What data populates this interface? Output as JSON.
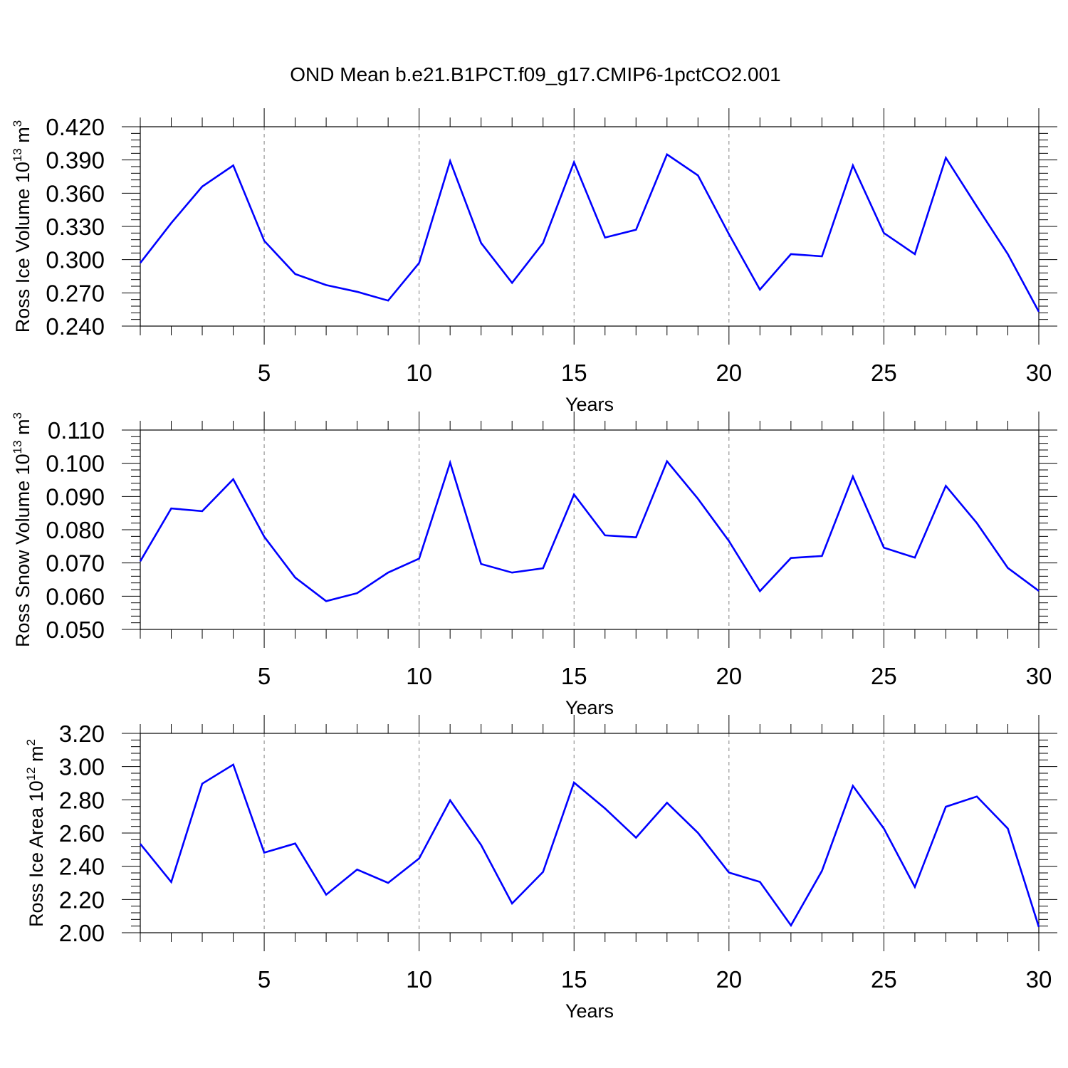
{
  "figure": {
    "title": "OND Mean b.e21.B1PCT.f09_g17.CMIP6-1pctCO2.001"
  },
  "style": {
    "line_color": "#0000ff",
    "axis_color": "#000000",
    "grid_color": "#808080"
  },
  "chart_data": [
    {
      "type": "line",
      "title": "OND Mean b.e21.B1PCT.f09_g17.CMIP6-1pctCO2.001",
      "xlabel": "Years",
      "ylabel": {
        "text": "Ross Ice Volume 10",
        "sup": "13",
        "unit": " m",
        "unit_sup": "3"
      },
      "xlim": [
        1,
        30
      ],
      "ylim": [
        0.24,
        0.42
      ],
      "xticks": [
        5,
        10,
        15,
        20,
        25,
        30
      ],
      "xtick_labels": [
        "5",
        "10",
        "15",
        "20",
        "25",
        "30"
      ],
      "yticks": [
        0.24,
        0.27,
        0.3,
        0.33,
        0.36,
        0.39,
        0.42
      ],
      "ytick_labels": [
        "0.240",
        "0.270",
        "0.300",
        "0.330",
        "0.360",
        "0.390",
        "0.420"
      ],
      "grid": "x-dashed",
      "x": [
        1,
        2,
        3,
        4,
        5,
        6,
        7,
        8,
        9,
        10,
        11,
        12,
        13,
        14,
        15,
        16,
        17,
        18,
        19,
        20,
        21,
        22,
        23,
        24,
        25,
        26,
        27,
        28,
        29,
        30
      ],
      "values": [
        0.297,
        0.333,
        0.366,
        0.385,
        0.317,
        0.287,
        0.277,
        0.271,
        0.263,
        0.297,
        0.389,
        0.315,
        0.279,
        0.315,
        0.388,
        0.32,
        0.327,
        0.395,
        0.376,
        0.323,
        0.273,
        0.305,
        0.303,
        0.385,
        0.324,
        0.305,
        0.392,
        0.348,
        0.305,
        0.253
      ]
    },
    {
      "type": "line",
      "xlabel": "Years",
      "ylabel": {
        "text": "Ross Snow Volume 10",
        "sup": "13",
        "unit": " m",
        "unit_sup": "3"
      },
      "xlim": [
        1,
        30
      ],
      "ylim": [
        0.05,
        0.11
      ],
      "xticks": [
        5,
        10,
        15,
        20,
        25,
        30
      ],
      "xtick_labels": [
        "5",
        "10",
        "15",
        "20",
        "25",
        "30"
      ],
      "yticks": [
        0.05,
        0.06,
        0.07,
        0.08,
        0.09,
        0.1,
        0.11
      ],
      "ytick_labels": [
        "0.050",
        "0.060",
        "0.070",
        "0.080",
        "0.090",
        "0.100",
        "0.110"
      ],
      "grid": "x-dashed",
      "x": [
        1,
        2,
        3,
        4,
        5,
        6,
        7,
        8,
        9,
        10,
        11,
        12,
        13,
        14,
        15,
        16,
        17,
        18,
        19,
        20,
        21,
        22,
        23,
        24,
        25,
        26,
        27,
        28,
        29,
        30
      ],
      "values": [
        0.0705,
        0.0864,
        0.0856,
        0.0952,
        0.0779,
        0.0656,
        0.0585,
        0.0609,
        0.0671,
        0.0713,
        0.1002,
        0.0697,
        0.0671,
        0.0684,
        0.0906,
        0.0783,
        0.0777,
        0.1006,
        0.0893,
        0.0766,
        0.0615,
        0.0715,
        0.0721,
        0.096,
        0.0746,
        0.0716,
        0.0932,
        0.082,
        0.0685,
        0.0616
      ]
    },
    {
      "type": "line",
      "xlabel": "Years",
      "ylabel": {
        "text": "Ross Ice Area 10",
        "sup": "12",
        "unit": " m",
        "unit_sup": "2"
      },
      "xlim": [
        1,
        30
      ],
      "ylim": [
        2.0,
        3.2
      ],
      "xticks": [
        5,
        10,
        15,
        20,
        25,
        30
      ],
      "xtick_labels": [
        "5",
        "10",
        "15",
        "20",
        "25",
        "30"
      ],
      "yticks": [
        2.0,
        2.2,
        2.4,
        2.6,
        2.8,
        3.0,
        3.2
      ],
      "ytick_labels": [
        "2.00",
        "2.20",
        "2.40",
        "2.60",
        "2.80",
        "3.00",
        "3.20"
      ],
      "grid": "x-dashed",
      "x": [
        1,
        2,
        3,
        4,
        5,
        6,
        7,
        8,
        9,
        10,
        11,
        12,
        13,
        14,
        15,
        16,
        17,
        18,
        19,
        20,
        21,
        22,
        23,
        24,
        25,
        26,
        27,
        28,
        29,
        30
      ],
      "values": [
        2.535,
        2.305,
        2.897,
        3.012,
        2.482,
        2.537,
        2.229,
        2.38,
        2.3,
        2.447,
        2.797,
        2.528,
        2.176,
        2.366,
        2.904,
        2.748,
        2.572,
        2.782,
        2.601,
        2.362,
        2.306,
        2.044,
        2.372,
        2.884,
        2.627,
        2.275,
        2.758,
        2.82,
        2.627,
        2.035
      ]
    }
  ]
}
